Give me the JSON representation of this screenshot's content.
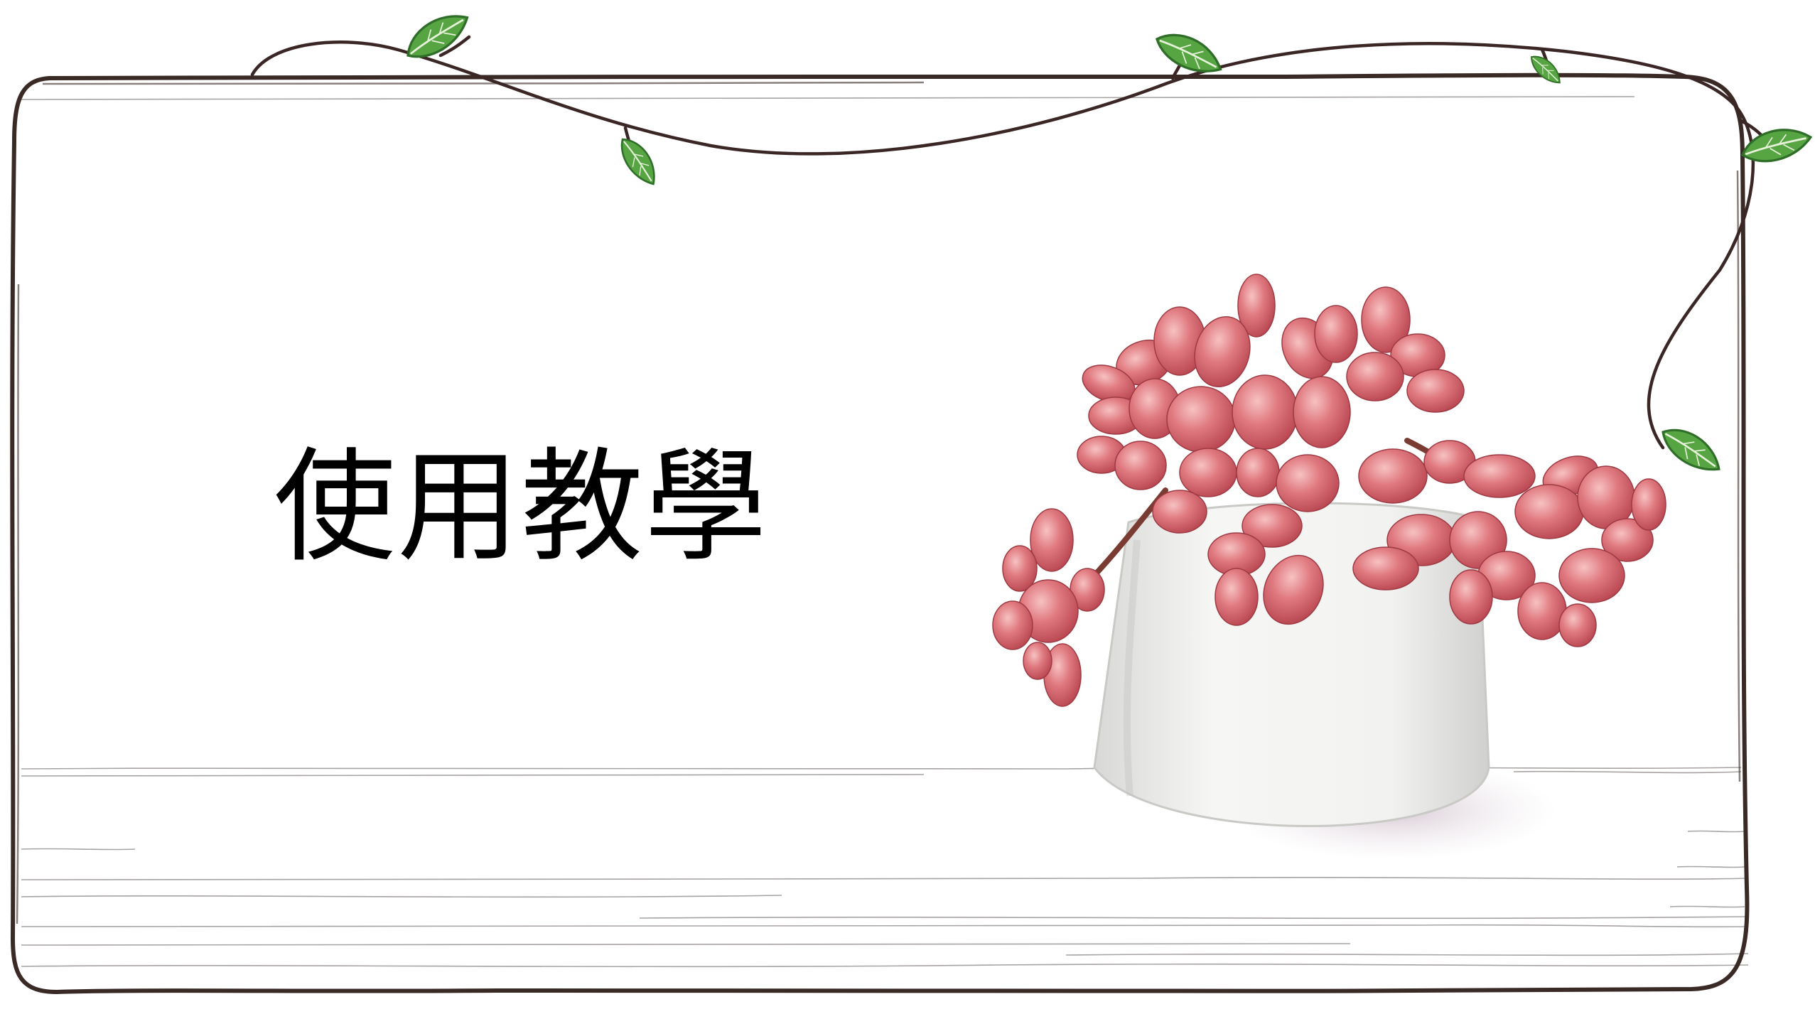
{
  "slide": {
    "title": "使用教學"
  },
  "decor": {
    "frame_color": "#3a2a26",
    "vine_color": "#3a2624",
    "leaf_color": "#4f9a3c",
    "leaf_dark": "#2f6e28",
    "flower_color": "#d9656f",
    "flower_light": "#f0a3a6",
    "pot_color": "#f2f2f0",
    "icons": [
      "leaf-icon",
      "succulent-pot-illustration"
    ]
  }
}
